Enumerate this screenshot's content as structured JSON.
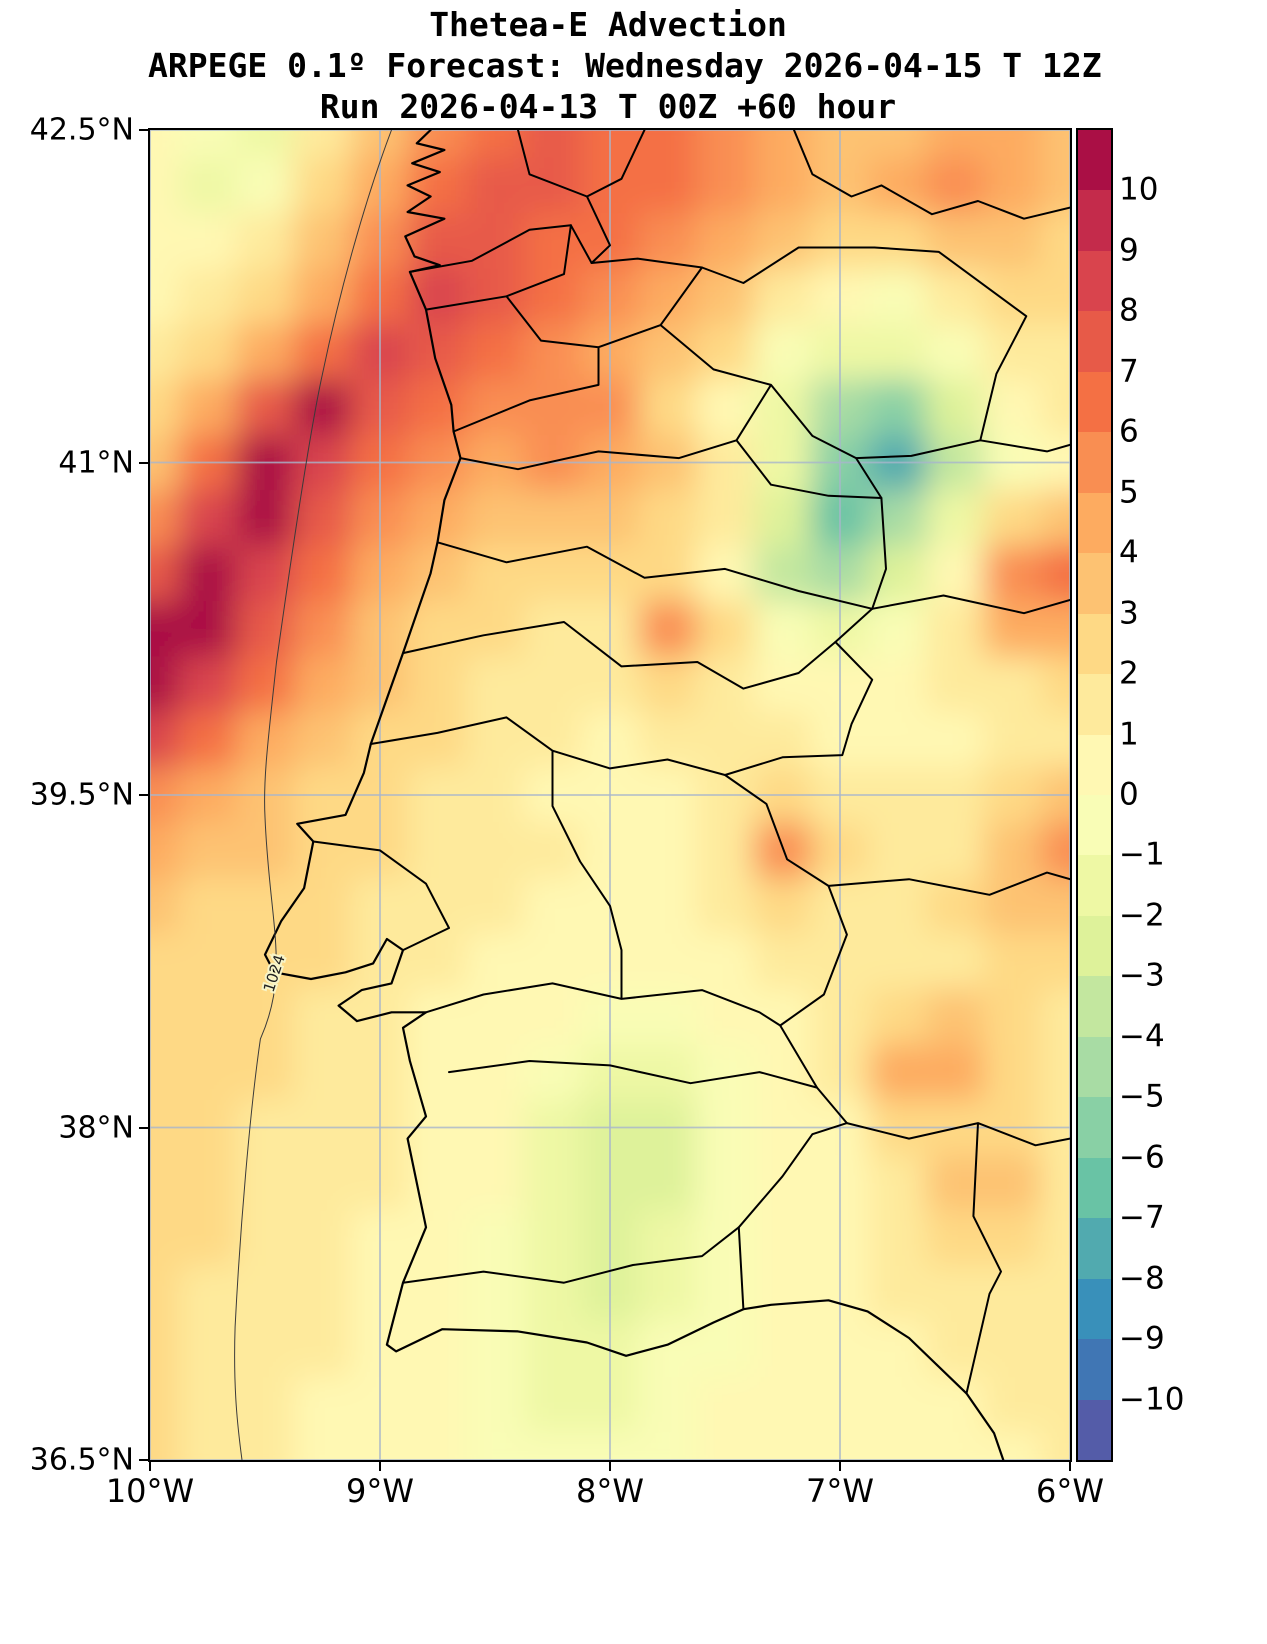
{
  "header": {
    "lines": [
      "Thetea-E Advection",
      "ARPEGE 0.1º Forecast: Wednesday 2026-04-15 T 12Z",
      "Run 2026-04-13 T 00Z +60 hour"
    ]
  },
  "axes": {
    "x_tick_labels": [
      "10°W",
      "9°W",
      "8°W",
      "7°W",
      "6°W"
    ],
    "x_tick_values": [
      -10,
      -9,
      -8,
      -7,
      -6
    ],
    "y_tick_labels": [
      "42.5°N",
      "41°N",
      "39.5°N",
      "38°N",
      "36.5°N"
    ],
    "y_tick_values": [
      42.5,
      41,
      39.5,
      38,
      36.5
    ],
    "grid": "on"
  },
  "colorbar": {
    "tick_labels": [
      "10",
      "9",
      "8",
      "7",
      "6",
      "5",
      "4",
      "3",
      "2",
      "1",
      "0",
      "−1",
      "−2",
      "−3",
      "−4",
      "−5",
      "−6",
      "−7",
      "−8",
      "−9",
      "−10"
    ],
    "tick_values": [
      10,
      9,
      8,
      7,
      6,
      5,
      4,
      3,
      2,
      1,
      0,
      -1,
      -2,
      -3,
      -4,
      -5,
      -6,
      -7,
      -8,
      -9,
      -10
    ],
    "vlim": [
      -11,
      11
    ],
    "colormap_anchors": [
      "#5e4fa2",
      "#3288bd",
      "#66c2a5",
      "#abdda4",
      "#e6f598",
      "#ffffbf",
      "#fee08b",
      "#fdae61",
      "#f46d43",
      "#d53e4f",
      "#9e0142"
    ]
  },
  "chart_data": {
    "type": "heatmap",
    "title": "Thetea-E Advection",
    "model": "ARPEGE 0.1º",
    "valid_time": "Wednesday 2026-04-15 T 12Z",
    "run_time": "2026-04-13 T 00Z",
    "lead_hours": "+60 hour",
    "colormap": "Spectral_r",
    "level_min": -11,
    "level_max": 11,
    "level_step": 1,
    "extent": {
      "lon_min": -10,
      "lon_max": -6,
      "lat_min": 36.5,
      "lat_max": 42.5
    },
    "x": [
      -10,
      -9.75,
      -9.5,
      -9.25,
      -9,
      -8.75,
      -8.5,
      -8.25,
      -8,
      -7.75,
      -7.5,
      -7.25,
      -7,
      -6.75,
      -6.5,
      -6.25,
      -6
    ],
    "y": [
      42.5,
      42.25,
      42,
      41.75,
      41.5,
      41.25,
      41,
      40.75,
      40.5,
      40.25,
      40,
      39.75,
      39.5,
      39.25,
      39,
      38.75,
      38.5,
      38.25,
      38,
      37.75,
      37.5,
      37.25,
      37,
      36.75,
      36.5
    ],
    "values": [
      [
        0.5,
        -1,
        -2,
        1,
        3,
        5,
        6,
        7,
        6,
        6,
        5,
        4,
        3,
        3,
        4,
        4,
        3
      ],
      [
        0.5,
        -2,
        -1,
        2,
        4,
        6,
        7,
        7,
        6,
        6,
        5,
        4,
        3,
        4,
        5,
        4,
        3
      ],
      [
        0.5,
        0,
        1,
        3,
        5,
        7,
        7,
        6,
        6,
        5,
        4,
        3,
        2,
        2,
        3,
        3,
        2
      ],
      [
        0.5,
        1,
        2,
        4,
        6,
        8,
        7,
        6,
        5,
        4,
        3,
        1,
        0,
        -1,
        1,
        2,
        2
      ],
      [
        1,
        2,
        4,
        6,
        8,
        7,
        6,
        5,
        4,
        3,
        2,
        -1,
        -2,
        -2,
        -1,
        1,
        1
      ],
      [
        2,
        4,
        7,
        10,
        7,
        6,
        5,
        5,
        5,
        2,
        0,
        -2,
        -5,
        -6,
        -3,
        0,
        1
      ],
      [
        3,
        6,
        10,
        8,
        6,
        5,
        4,
        5,
        4,
        3,
        1,
        -2,
        -6,
        -8,
        -4,
        -1,
        0
      ],
      [
        5,
        8,
        10,
        7,
        5,
        4,
        3,
        3,
        3,
        2,
        1,
        -3,
        -7,
        -5,
        -2,
        2,
        3
      ],
      [
        7,
        10,
        8,
        6,
        4,
        3,
        2,
        2,
        2,
        2,
        0,
        -4,
        -5,
        -3,
        0,
        5,
        6
      ],
      [
        10,
        10,
        7,
        5,
        3,
        2,
        2,
        1,
        1,
        5,
        2,
        -1,
        -2,
        -1,
        1,
        4,
        4
      ],
      [
        10,
        8,
        6,
        4,
        3,
        2,
        1,
        1,
        1,
        2,
        1,
        0,
        0,
        0,
        1,
        1,
        2
      ],
      [
        8,
        6,
        4,
        3,
        2,
        2,
        1,
        1,
        0,
        1,
        1,
        1,
        0,
        0,
        0,
        1,
        1
      ],
      [
        5,
        4,
        3,
        2.5,
        2,
        1,
        1,
        0,
        0,
        0,
        1,
        2,
        1,
        1,
        1,
        2,
        3
      ],
      [
        4,
        3,
        3,
        2.5,
        2,
        1.5,
        1,
        1,
        0.5,
        0.5,
        1,
        5,
        2,
        1,
        1,
        3,
        5
      ],
      [
        3,
        2.5,
        2.5,
        2,
        1.5,
        1,
        1,
        0.5,
        0.5,
        0.5,
        1,
        2,
        1,
        1,
        2,
        3,
        3
      ],
      [
        2.5,
        2.5,
        2,
        2,
        1,
        1,
        0.5,
        0.5,
        0,
        0,
        0.5,
        1,
        1,
        1,
        1,
        2,
        2
      ],
      [
        2.5,
        2,
        2,
        1.5,
        1,
        0.5,
        0.5,
        0,
        -1,
        -1,
        0,
        0.5,
        1,
        2,
        3,
        2,
        1
      ],
      [
        2,
        2,
        2,
        1.5,
        1,
        0.5,
        0,
        -1,
        -2,
        -2,
        -0.5,
        0.5,
        1,
        4,
        4,
        2,
        1
      ],
      [
        2,
        2,
        1.5,
        1.5,
        1,
        0.5,
        0,
        -1.5,
        -3,
        -2.5,
        -1,
        0,
        0.5,
        2,
        2,
        2,
        1
      ],
      [
        2,
        2,
        1.5,
        1,
        1,
        0.5,
        0,
        -1.5,
        -3,
        -2.5,
        -1,
        0,
        0.5,
        1,
        3,
        3,
        1
      ],
      [
        2,
        2,
        1.5,
        1,
        0.5,
        0.5,
        -0.5,
        -2,
        -3,
        -2,
        -1,
        0,
        0.5,
        1,
        2,
        2,
        1
      ],
      [
        2,
        1.5,
        1.5,
        1,
        0.5,
        0,
        -1,
        -2,
        -2.5,
        -1.5,
        -0.5,
        0,
        0.5,
        1,
        1,
        1,
        1
      ],
      [
        2,
        1.5,
        1,
        1,
        0.5,
        0,
        -1,
        -2,
        -2,
        -1,
        -0.5,
        0,
        0.5,
        0.5,
        1,
        1,
        1
      ],
      [
        2,
        1.5,
        1,
        0.5,
        0.5,
        0,
        -0.5,
        -1.5,
        -1.5,
        -1,
        0,
        0,
        0.5,
        0.5,
        0.5,
        1,
        1
      ],
      [
        2,
        1.5,
        1,
        0.5,
        0.5,
        0,
        -0.5,
        -1,
        -1,
        -0.5,
        0,
        0.5,
        0.5,
        0.5,
        0.5,
        0.5,
        1
      ]
    ],
    "annotations": [
      {
        "text": "1024",
        "lon": -9.43,
        "lat": 38.68
      }
    ]
  }
}
